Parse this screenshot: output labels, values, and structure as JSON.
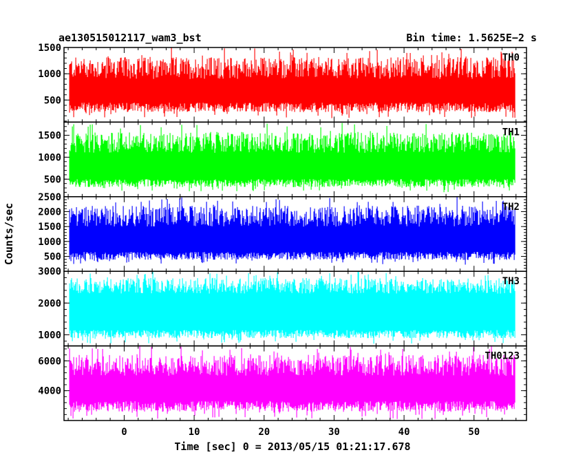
{
  "chart_data": {
    "type": "line",
    "title_left": "ae130515012117_wam3_bst",
    "title_right": "Bin time: 1.5625E−2 s",
    "xlabel": "Time [sec] 0 = 2013/05/15 01:21:17.678",
    "ylabel": "Counts/sec",
    "xlim": [
      -8.6,
      57.5
    ],
    "x_ticks": [
      0,
      10,
      20,
      30,
      40,
      50
    ],
    "x_tick_labels": [
      "0",
      "10",
      "20",
      "30",
      "40",
      "50"
    ],
    "x_data_range": [
      -7.8,
      55.9
    ],
    "grid": false,
    "panels": [
      {
        "name": "TH0",
        "color": "#ff0000",
        "ylim": [
          80,
          1500
        ],
        "y_ticks": [
          500,
          1000,
          1500
        ],
        "y_tick_labels": [
          "500",
          "1000",
          "1500"
        ],
        "band": {
          "low_min": 150,
          "low_max": 450,
          "high_min": 900,
          "high_max": 1500
        }
      },
      {
        "name": "TH1",
        "color": "#00ff00",
        "ylim": [
          100,
          1800
        ],
        "y_ticks": [
          500,
          1000,
          1500
        ],
        "y_tick_labels": [
          "500",
          "1000",
          "1500"
        ],
        "band": {
          "low_min": 200,
          "low_max": 500,
          "high_min": 1100,
          "high_max": 1780
        }
      },
      {
        "name": "TH2",
        "color": "#0000ff",
        "ylim": [
          0,
          2500
        ],
        "y_ticks": [
          500,
          1000,
          1500,
          2000,
          2500
        ],
        "y_tick_labels": [
          "500",
          "1000",
          "1500",
          "2000",
          "2500"
        ],
        "band": {
          "low_min": 200,
          "low_max": 650,
          "high_min": 1500,
          "high_max": 2500
        }
      },
      {
        "name": "TH3",
        "color": "#00ffff",
        "ylim": [
          650,
          3000
        ],
        "y_ticks": [
          1000,
          2000,
          3000
        ],
        "y_tick_labels": [
          "1000",
          "2000",
          "3000"
        ],
        "band": {
          "low_min": 720,
          "low_max": 1150,
          "high_min": 2300,
          "high_max": 3000
        }
      },
      {
        "name": "TH0123",
        "color": "#ff00ff",
        "ylim": [
          2000,
          7000
        ],
        "y_ticks": [
          4000,
          6000
        ],
        "y_tick_labels": [
          "4000",
          "6000"
        ],
        "band": {
          "low_min": 2100,
          "low_max": 3300,
          "high_min": 5000,
          "high_max": 7000
        }
      }
    ]
  }
}
